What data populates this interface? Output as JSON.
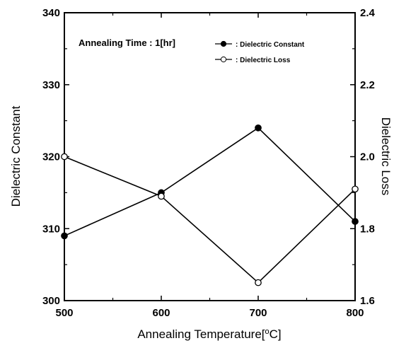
{
  "chart_data": {
    "type": "line",
    "title": "",
    "xlabel": "Annealing Temperature[°C]",
    "xlabel_parts": {
      "prefix": "Annealing Temperature[",
      "sup": "o",
      "suffix": "C]"
    },
    "ylabel_left": "Dielectric Constant",
    "ylabel_right": "Dielectric Loss",
    "annotation": "Annealing Time : 1[hr]",
    "x": [
      500,
      600,
      700,
      800
    ],
    "xlim": [
      500,
      800
    ],
    "xticks": [
      "500",
      "600",
      "700",
      "800"
    ],
    "ylim_left": [
      300,
      340
    ],
    "yticks_left": [
      "300",
      "310",
      "320",
      "330",
      "340"
    ],
    "ylim_right": [
      1.6,
      2.4
    ],
    "yticks_right": [
      "1.6",
      "1.8",
      "2.0",
      "2.2",
      "2.4"
    ],
    "grid": false,
    "legend_position": "top-right",
    "series": [
      {
        "name": ": Dielectric Constant",
        "axis": "left",
        "marker": "filled-circle",
        "values": [
          309,
          315,
          324,
          311
        ]
      },
      {
        "name": ": Dielectric Loss",
        "axis": "right",
        "marker": "open-circle",
        "values": [
          2.0,
          1.89,
          1.65,
          1.91
        ]
      }
    ]
  }
}
